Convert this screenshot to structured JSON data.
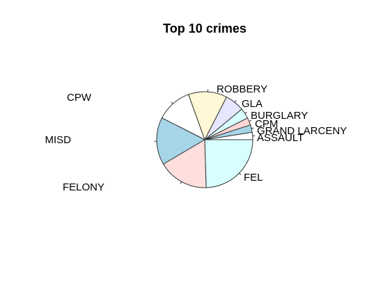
{
  "chart_data": {
    "type": "pie",
    "title": "Top 10 crimes",
    "start_angle_deg": 0,
    "direction": "counterclockwise",
    "slices": [
      {
        "label": "ASSAULT",
        "value": 2.5,
        "color": "#ffffff"
      },
      {
        "label": "GRAND LARCENY",
        "value": 2.5,
        "color": "#a6d5e8"
      },
      {
        "label": "CPM",
        "value": 2.5,
        "color": "#ffd6d6"
      },
      {
        "label": "BURGLARY",
        "value": 3.5,
        "color": "#d8ffff"
      },
      {
        "label": "GLA",
        "value": 6.5,
        "color": "#e6e6ff"
      },
      {
        "label": "ROBBERY",
        "value": 13.0,
        "color": "#fff8d6"
      },
      {
        "label": "CPW",
        "value": 12.0,
        "color": "#ffffff"
      },
      {
        "label": "MISD",
        "value": 16.0,
        "color": "#a6d5e8"
      },
      {
        "label": "FELONY",
        "value": 17.0,
        "color": "#ffdede"
      },
      {
        "label": "FEL",
        "value": 24.5,
        "color": "#d8ffff"
      }
    ]
  }
}
